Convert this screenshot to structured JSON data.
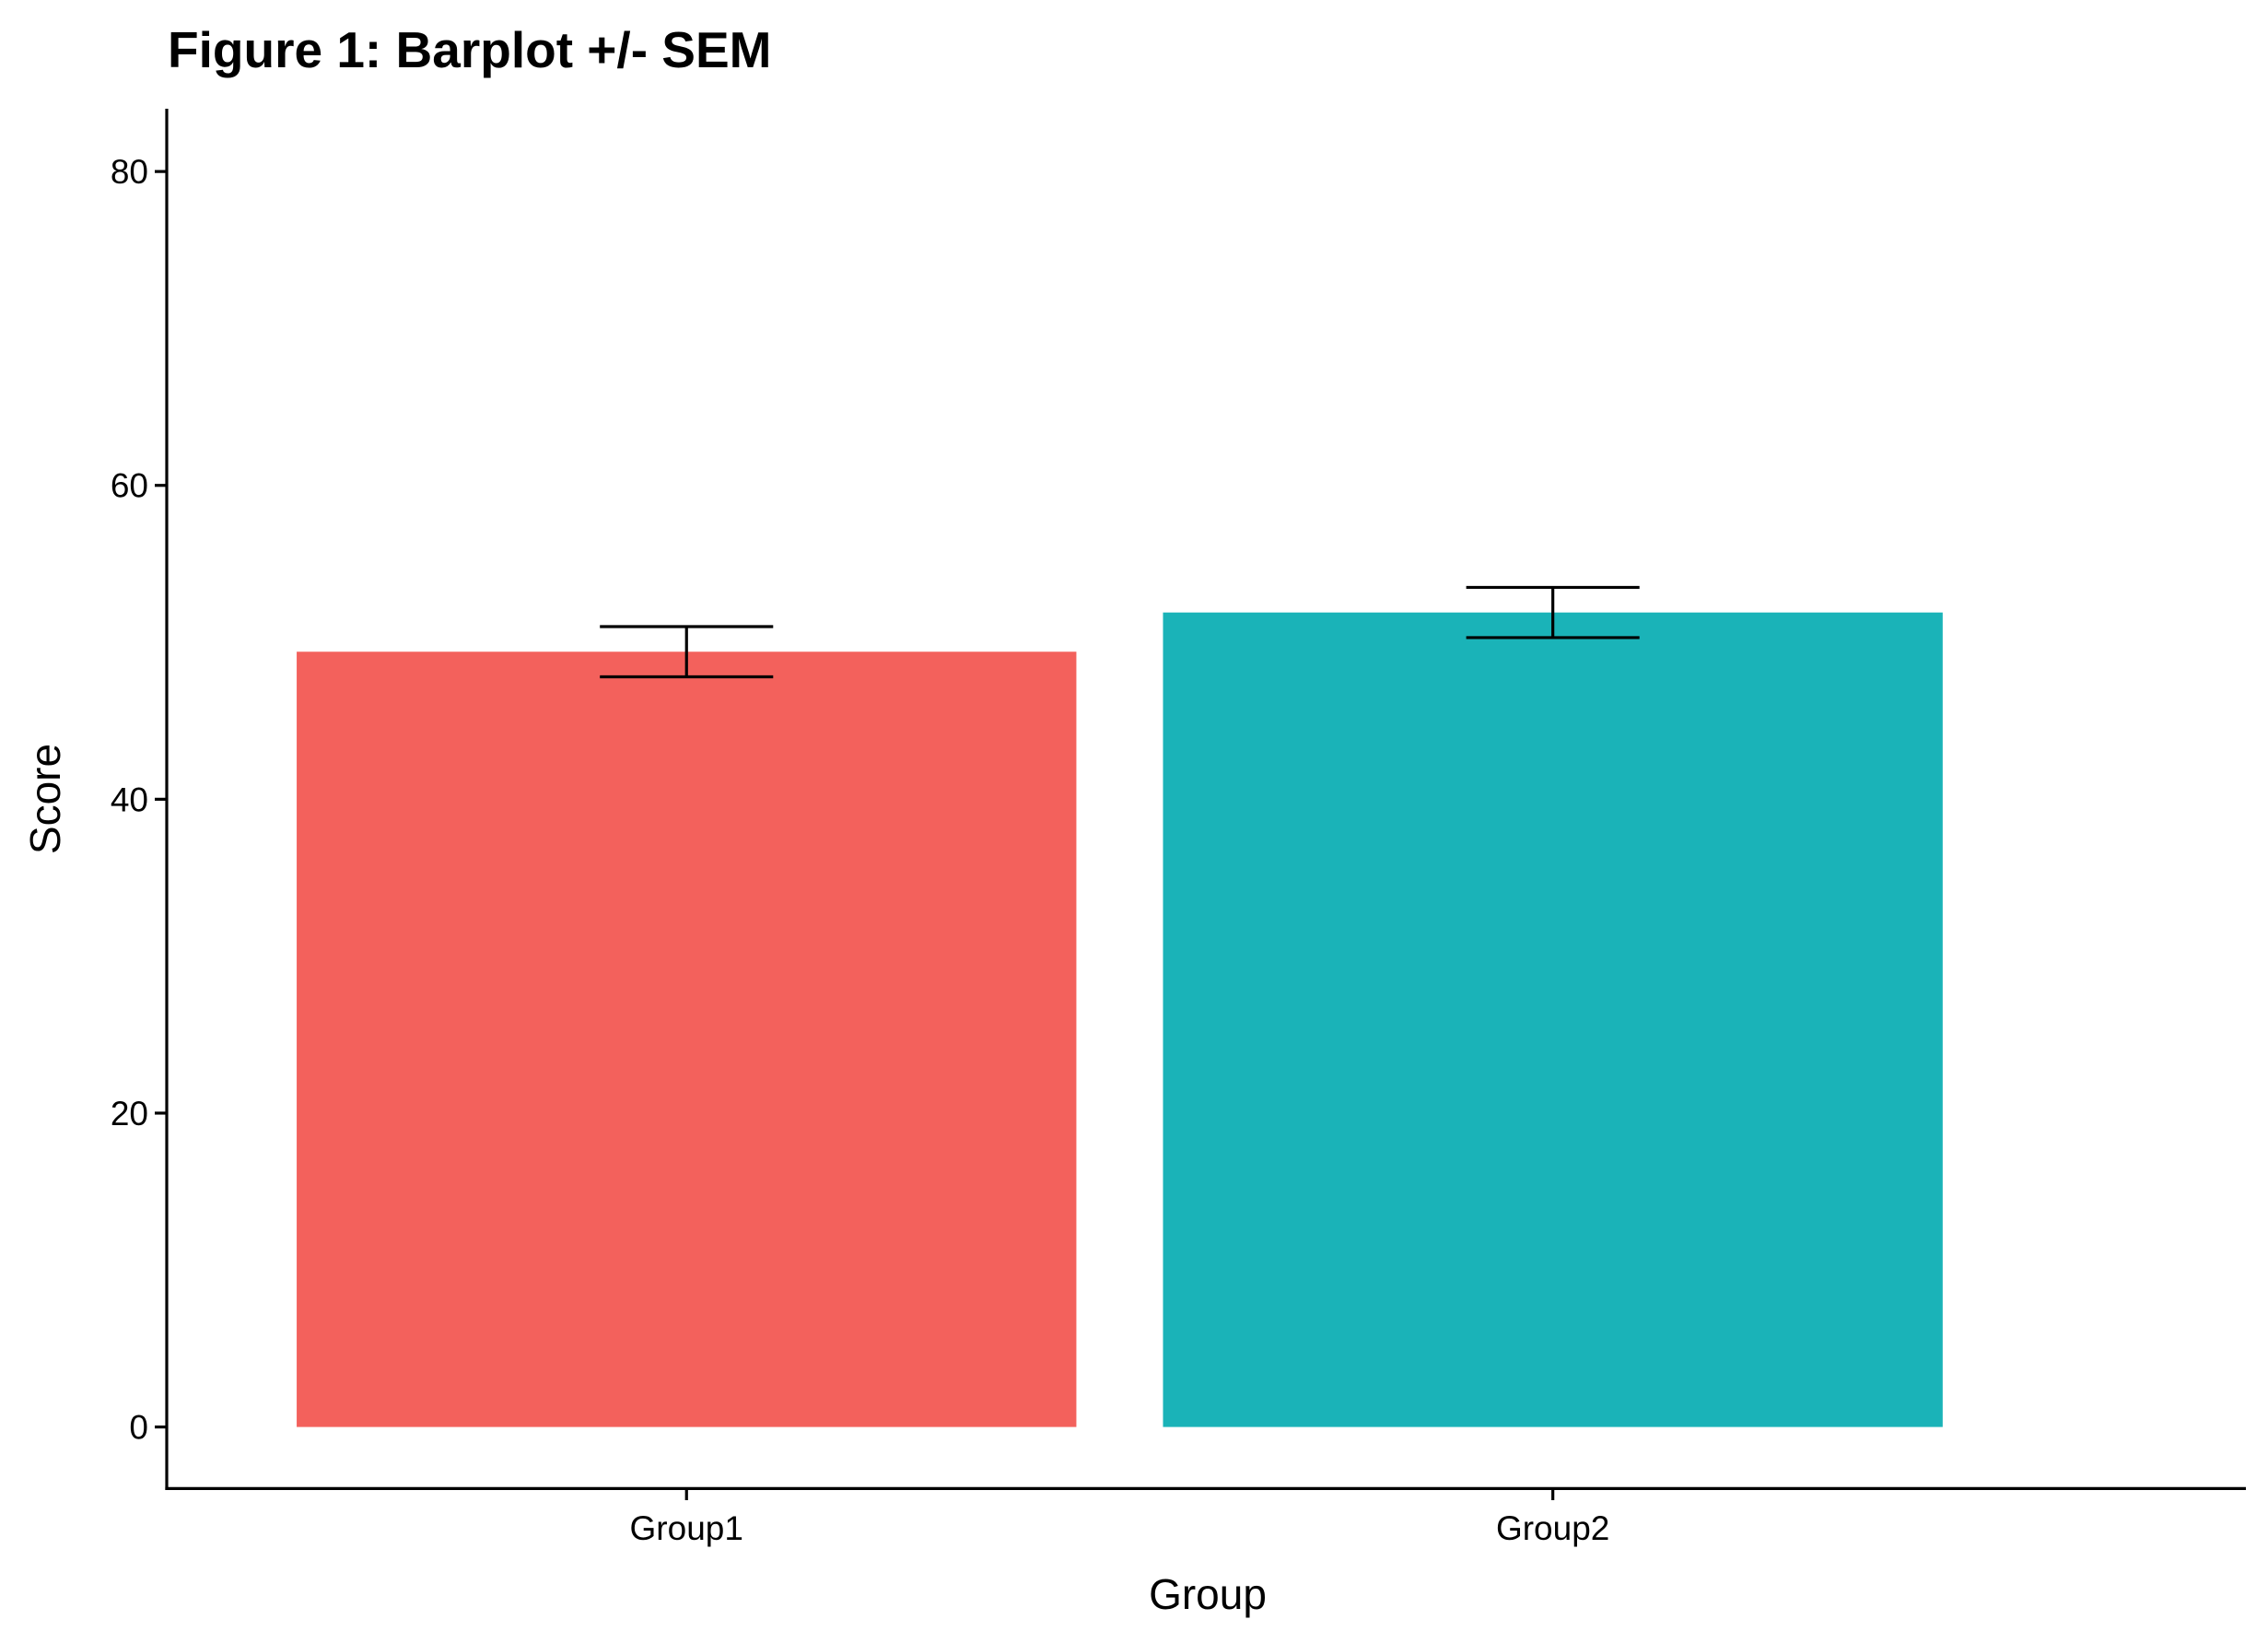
{
  "chart_data": {
    "type": "bar",
    "title": "Figure 1: Barplot +/- SEM",
    "xlabel": "Group",
    "ylabel": "Score",
    "categories": [
      "Group1",
      "Group2"
    ],
    "values": [
      49.4,
      51.9
    ],
    "error_lower": [
      47.8,
      50.3
    ],
    "error_upper": [
      51.0,
      53.5
    ],
    "colors": [
      "#F3615C",
      "#1AB3B8"
    ],
    "ylim": [
      -3.9,
      84
    ],
    "yticks": [
      0,
      20,
      40,
      60,
      80
    ],
    "ytick_labels": [
      "0",
      "20",
      "40",
      "60",
      "80"
    ],
    "grid": false,
    "legend": "none"
  }
}
